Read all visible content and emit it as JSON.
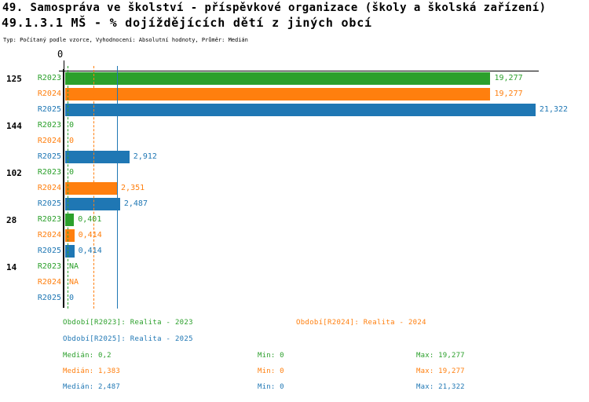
{
  "header": {
    "title_line1": "49. Samospráva ve školství - příspěvkové organizace (školy a školská zařízení)",
    "title_line2": "49.1.3.1 MŠ - % dojíždějících dětí z jiných obcí",
    "meta_line": "Typ: Počítaný podle vzorce, Vyhodnocení: Absolutní hodnoty, Průměr: Medián"
  },
  "colors": {
    "series": [
      "#2ca02c",
      "#ff7f0e",
      "#1f77b4"
    ],
    "axis": "#000000"
  },
  "chart_data": {
    "type": "bar",
    "orientation": "horizontal",
    "origin_tick_label": "0",
    "x_max": 21.322,
    "grid": "median-reference-lines",
    "series": [
      {
        "name": "R2023",
        "median": 0.2,
        "median_line_style": "dashed"
      },
      {
        "name": "R2024",
        "median": 1.383,
        "median_line_style": "dashed"
      },
      {
        "name": "R2025",
        "median": 2.487,
        "median_line_style": "solid"
      }
    ],
    "groups": [
      {
        "label": "125",
        "values": [
          19.277,
          19.277,
          21.322
        ],
        "value_labels": [
          "19,277",
          "19,277",
          "21,322"
        ]
      },
      {
        "label": "144",
        "values": [
          0,
          0,
          2.912
        ],
        "value_labels": [
          "0",
          "0",
          "2,912"
        ]
      },
      {
        "label": "102",
        "values": [
          0,
          2.351,
          2.487
        ],
        "value_labels": [
          "0",
          "2,351",
          "2,487"
        ]
      },
      {
        "label": "28",
        "values": [
          0.401,
          0.414,
          0.414
        ],
        "value_labels": [
          "0,401",
          "0,414",
          "0,414"
        ]
      },
      {
        "label": "14",
        "values": [
          null,
          null,
          0
        ],
        "value_labels": [
          "NA",
          "NA",
          "0"
        ]
      }
    ]
  },
  "legend": {
    "items": [
      {
        "label": "Období[R2023]: Realita - 2023"
      },
      {
        "label": "Období[R2024]: Realita - 2024"
      },
      {
        "label": "Období[R2025]: Realita - 2025"
      }
    ]
  },
  "stats": {
    "rows": [
      {
        "median": "Medián: 0,2",
        "min": "Min: 0",
        "max": "Max: 19,277"
      },
      {
        "median": "Medián: 1,383",
        "min": "Min: 0",
        "max": "Max: 19,277"
      },
      {
        "median": "Medián: 2,487",
        "min": "Min: 0",
        "max": "Max: 21,322"
      }
    ]
  }
}
